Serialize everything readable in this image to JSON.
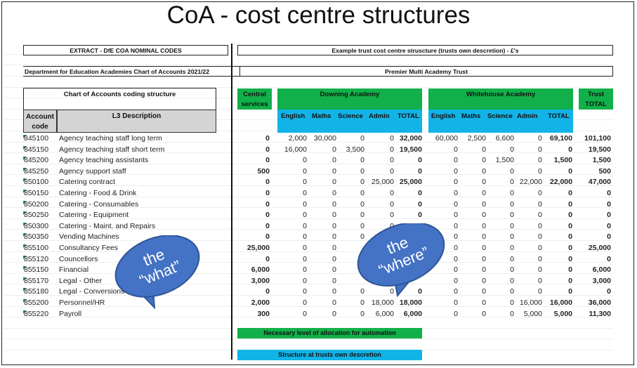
{
  "title": "CoA - cost centre structures",
  "left_header": "EXTRACT  - DfE COA NOMINAL CODES",
  "right_header": "Example trust cost centre struscture (trusts own descretion) - £'s",
  "dfe_label": "Department for Education Academies Chart of Accounts 2021/22",
  "trust_name": "Premier Multi Academy Trust",
  "coding_structure": "Chart of Accounts coding structure",
  "col_account_code": "Account code",
  "col_l3": "L3 Description",
  "central_services": "Central services",
  "downing": "Downing Academy",
  "whitehouse": "Whitehouse Academy",
  "trust_total": "Trust TOTAL",
  "subcols": [
    "English",
    "Maths",
    "Science",
    "Admin",
    "TOTAL"
  ],
  "rows": [
    {
      "code": "845100",
      "desc": "Agency teaching staff long term",
      "central": "0",
      "d": [
        "2,000",
        "30,000",
        "0",
        "0",
        "32,000"
      ],
      "w": [
        "60,000",
        "2,500",
        "6,600",
        "0",
        "69,100"
      ],
      "total": "101,100"
    },
    {
      "code": "845150",
      "desc": "Agency teaching staff short term",
      "central": "0",
      "d": [
        "16,000",
        "0",
        "3,500",
        "0",
        "19,500"
      ],
      "w": [
        "0",
        "0",
        "0",
        "0",
        "0"
      ],
      "total": "19,500"
    },
    {
      "code": "845200",
      "desc": "Agency teaching assistants",
      "central": "0",
      "d": [
        "0",
        "0",
        "0",
        "0",
        "0"
      ],
      "w": [
        "0",
        "0",
        "1,500",
        "0",
        "1,500"
      ],
      "total": "1,500"
    },
    {
      "code": "845250",
      "desc": "Agency support staff",
      "central": "500",
      "d": [
        "0",
        "0",
        "0",
        "0",
        "0"
      ],
      "w": [
        "0",
        "0",
        "0",
        "0",
        "0"
      ],
      "total": "500"
    },
    {
      "code": "850100",
      "desc": "Catering contract",
      "central": "0",
      "d": [
        "0",
        "0",
        "0",
        "25,000",
        "25,000"
      ],
      "w": [
        "0",
        "0",
        "0",
        "22,000",
        "22,000"
      ],
      "total": "47,000"
    },
    {
      "code": "850150",
      "desc": "Catering - Food & Drink",
      "central": "0",
      "d": [
        "0",
        "0",
        "0",
        "0",
        "0"
      ],
      "w": [
        "0",
        "0",
        "0",
        "0",
        "0"
      ],
      "total": "0"
    },
    {
      "code": "850200",
      "desc": "Catering - Consumables",
      "central": "0",
      "d": [
        "0",
        "0",
        "0",
        "0",
        "0"
      ],
      "w": [
        "0",
        "0",
        "0",
        "0",
        "0"
      ],
      "total": "0"
    },
    {
      "code": "850250",
      "desc": "Catering - Equipment",
      "central": "0",
      "d": [
        "0",
        "0",
        "0",
        "0",
        "0"
      ],
      "w": [
        "0",
        "0",
        "0",
        "0",
        "0"
      ],
      "total": "0"
    },
    {
      "code": "850300",
      "desc": "Catering - Maint. and Repairs",
      "central": "0",
      "d": [
        "0",
        "0",
        "0",
        "0",
        "0"
      ],
      "w": [
        "0",
        "0",
        "0",
        "0",
        "0"
      ],
      "total": "0"
    },
    {
      "code": "850350",
      "desc": "Vending Machines",
      "central": "0",
      "d": [
        "0",
        "0",
        "0",
        "0",
        ""
      ],
      "w": [
        "0",
        "0",
        "0",
        "0",
        "0"
      ],
      "total": "0"
    },
    {
      "code": "855100",
      "desc": "Consultancy Fees",
      "central": "25,000",
      "d": [
        "0",
        "0",
        "",
        "",
        ""
      ],
      "w": [
        "0",
        "0",
        "0",
        "0",
        "0"
      ],
      "total": "25,000"
    },
    {
      "code": "855120",
      "desc": "Councellors",
      "central": "0",
      "d": [
        "0",
        "0",
        "",
        "",
        ""
      ],
      "w": [
        "0",
        "0",
        "0",
        "0",
        "0"
      ],
      "total": "0"
    },
    {
      "code": "855150",
      "desc": "Financial",
      "central": "6,000",
      "d": [
        "0",
        "0",
        "",
        "",
        ""
      ],
      "w": [
        "0",
        "0",
        "0",
        "0",
        "0"
      ],
      "total": "6,000"
    },
    {
      "code": "855170",
      "desc": "Legal - Other",
      "central": "3,000",
      "d": [
        "0",
        "0",
        "",
        "",
        ""
      ],
      "w": [
        "0",
        "0",
        "0",
        "0",
        "0"
      ],
      "total": "3,000"
    },
    {
      "code": "855180",
      "desc": "Legal - Conversions",
      "central": "0",
      "d": [
        "0",
        "0",
        "0",
        "0",
        "0"
      ],
      "w": [
        "0",
        "0",
        "0",
        "0",
        "0"
      ],
      "total": "0"
    },
    {
      "code": "855200",
      "desc": "Personnel/HR",
      "central": "2,000",
      "d": [
        "0",
        "0",
        "0",
        "18,000",
        "18,000"
      ],
      "w": [
        "0",
        "0",
        "0",
        "16,000",
        "16,000"
      ],
      "total": "36,000"
    },
    {
      "code": "855220",
      "desc": "Payroll",
      "central": "300",
      "d": [
        "0",
        "0",
        "0",
        "6,000",
        "6,000"
      ],
      "w": [
        "0",
        "0",
        "0",
        "5,000",
        "5,000"
      ],
      "total": "11,300"
    }
  ],
  "legend_green": "Necessary level of allocation for automation",
  "legend_cyan": "Structure at trusts own descretion",
  "bubble_what": [
    "the",
    "“what”"
  ],
  "bubble_where": [
    "the",
    "“where”"
  ],
  "colors": {
    "green": "#12b04a",
    "cyan": "#12b4e8",
    "bubble": "#4472c4"
  }
}
